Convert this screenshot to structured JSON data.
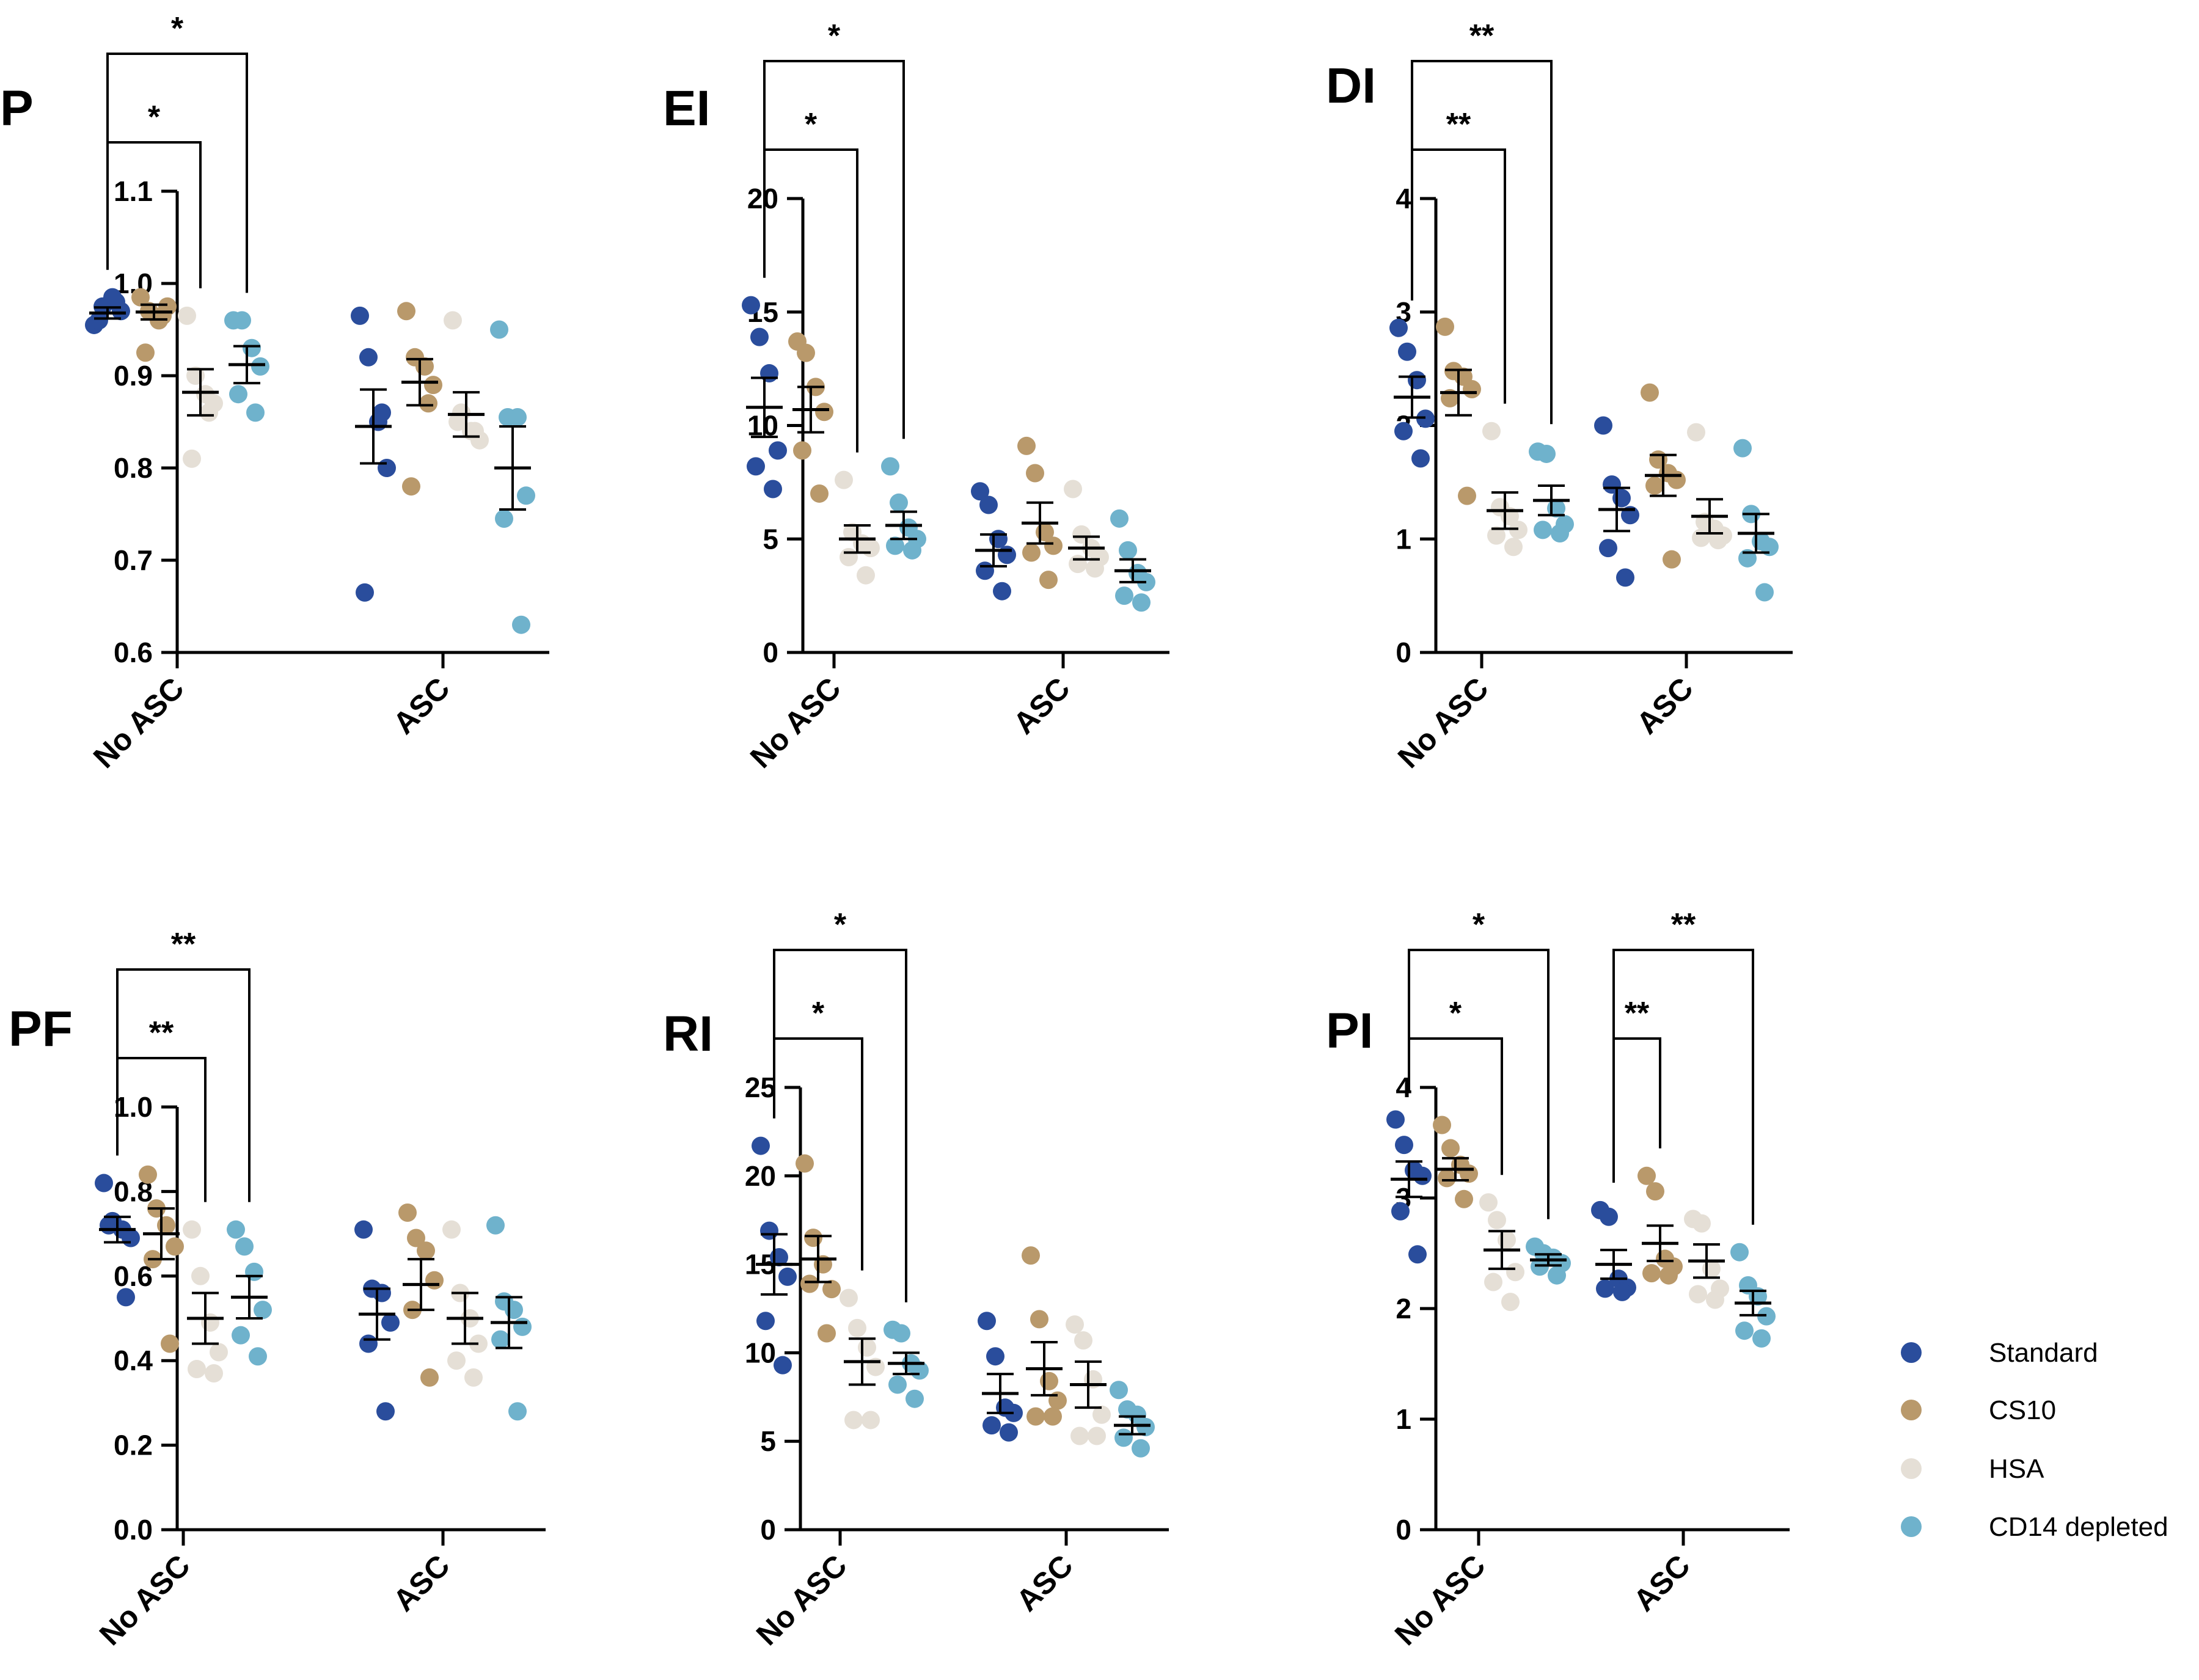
{
  "colors": {
    "Standard": "#2a4d9c",
    "CS10": "#b9996b",
    "HSA": "#e5dfd6",
    "CD14 depleted": "#6fb2cc"
  },
  "legend": {
    "items": [
      {
        "name": "Standard",
        "color": "#2a4d9c"
      },
      {
        "name": "CS10",
        "color": "#b9996b"
      },
      {
        "name": "HSA",
        "color": "#e5dfd6"
      },
      {
        "name": "CD14 depleted",
        "color": "#6fb2cc"
      }
    ]
  },
  "chart_data": [
    {
      "type": "scatter",
      "id": "P",
      "title": "P",
      "categories": [
        "No ASC",
        "ASC"
      ],
      "ylim": [
        0.6,
        1.1
      ],
      "yticks": [
        0.6,
        0.7,
        0.8,
        0.9,
        1.0,
        1.1
      ],
      "tick_labels": [
        "0.6",
        "0.7",
        "0.8",
        "0.9",
        "1.0",
        "1.1"
      ],
      "series": [
        {
          "name": "Standard",
          "values": [
            [
              0.955,
              0.975,
              0.985,
              0.97,
              0.96,
              0.98
            ],
            [
              0.965,
              0.92,
              0.85,
              0.8,
              0.665,
              0.86
            ]
          ],
          "mean": [
            0.968,
            0.845
          ],
          "sem": [
            0.006,
            0.04
          ]
        },
        {
          "name": "CS10",
          "values": [
            [
              0.985,
              0.97,
              0.96,
              0.975,
              0.925,
              0.965
            ],
            [
              0.97,
              0.92,
              0.91,
              0.89,
              0.78,
              0.87
            ]
          ],
          "mean": [
            0.969,
            0.893
          ],
          "sem": [
            0.008,
            0.025
          ]
        },
        {
          "name": "HSA",
          "values": [
            [
              0.965,
              0.9,
              0.88,
              0.87,
              0.81,
              0.86
            ],
            [
              0.96,
              0.86,
              0.84,
              0.83,
              0.85,
              0.84
            ]
          ],
          "mean": [
            0.882,
            0.858
          ],
          "sem": [
            0.025,
            0.024
          ]
        },
        {
          "name": "CD14 depleted",
          "values": [
            [
              0.96,
              0.96,
              0.93,
              0.91,
              0.88,
              0.86
            ],
            [
              0.95,
              0.855,
              0.855,
              0.77,
              0.745,
              0.63
            ]
          ],
          "mean": [
            0.912,
            0.8
          ],
          "sem": [
            0.02,
            0.045
          ]
        }
      ],
      "significance": [
        {
          "label": "*",
          "from": [
            0,
            0
          ],
          "to": [
            0,
            2
          ]
        },
        {
          "label": "*",
          "from": [
            0,
            0
          ],
          "to": [
            0,
            3
          ]
        }
      ]
    },
    {
      "type": "scatter",
      "id": "EI",
      "title": "EI",
      "categories": [
        "No ASC",
        "ASC"
      ],
      "ylim": [
        0,
        20
      ],
      "yticks": [
        0,
        5,
        10,
        15,
        20
      ],
      "tick_labels": [
        "0",
        "5",
        "10",
        "15",
        "20"
      ],
      "series": [
        {
          "name": "Standard",
          "values": [
            [
              15.3,
              13.9,
              12.3,
              8.9,
              8.2,
              7.2
            ],
            [
              7.1,
              6.5,
              5.0,
              4.3,
              3.6,
              2.7
            ]
          ],
          "mean": [
            10.8,
            4.5
          ],
          "sem": [
            1.3,
            0.7
          ]
        },
        {
          "name": "CS10",
          "values": [
            [
              13.7,
              13.2,
              11.7,
              10.6,
              8.9,
              7.0
            ],
            [
              9.1,
              7.9,
              5.3,
              4.7,
              4.4,
              3.2
            ]
          ],
          "mean": [
            10.7,
            5.7
          ],
          "sem": [
            1.0,
            0.9
          ]
        },
        {
          "name": "HSA",
          "values": [
            [
              7.6,
              5.3,
              4.8,
              4.6,
              4.2,
              3.4
            ],
            [
              7.2,
              5.2,
              4.6,
              4.2,
              3.9,
              3.7
            ]
          ],
          "mean": [
            5.0,
            4.6
          ],
          "sem": [
            0.6,
            0.5
          ]
        },
        {
          "name": "CD14 depleted",
          "values": [
            [
              8.2,
              6.6,
              5.5,
              5.0,
              4.7,
              4.5
            ],
            [
              5.9,
              4.5,
              3.5,
              3.1,
              2.5,
              2.2
            ]
          ],
          "mean": [
            5.6,
            3.6
          ],
          "sem": [
            0.6,
            0.5
          ]
        }
      ],
      "significance": [
        {
          "label": "*",
          "from": [
            0,
            0
          ],
          "to": [
            0,
            2
          ]
        },
        {
          "label": "*",
          "from": [
            0,
            0
          ],
          "to": [
            0,
            3
          ]
        }
      ]
    },
    {
      "type": "scatter",
      "id": "DI",
      "title": "DI",
      "categories": [
        "No ASC",
        "ASC"
      ],
      "ylim": [
        0,
        4
      ],
      "yticks": [
        0,
        1,
        2,
        3,
        4
      ],
      "tick_labels": [
        "0",
        "1",
        "2",
        "3",
        "4"
      ],
      "series": [
        {
          "name": "Standard",
          "values": [
            [
              2.86,
              2.65,
              2.4,
              2.06,
              1.95,
              1.71
            ],
            [
              2.0,
              1.48,
              1.36,
              1.21,
              0.92,
              0.66
            ]
          ],
          "mean": [
            2.25,
            1.26
          ],
          "sem": [
            0.18,
            0.19
          ]
        },
        {
          "name": "CS10",
          "values": [
            [
              2.87,
              2.48,
              2.43,
              2.32,
              2.24,
              1.38
            ],
            [
              2.29,
              1.7,
              1.58,
              1.52,
              1.47,
              0.82
            ]
          ],
          "mean": [
            2.29,
            1.56
          ],
          "sem": [
            0.2,
            0.18
          ]
        },
        {
          "name": "HSA",
          "values": [
            [
              1.95,
              1.28,
              1.2,
              1.08,
              1.03,
              0.93
            ],
            [
              1.94,
              1.15,
              1.09,
              1.03,
              1.01,
              0.99
            ]
          ],
          "mean": [
            1.25,
            1.2
          ],
          "sem": [
            0.16,
            0.15
          ]
        },
        {
          "name": "CD14 depleted",
          "values": [
            [
              1.77,
              1.75,
              1.27,
              1.13,
              1.08,
              1.05
            ],
            [
              1.8,
              1.22,
              0.98,
              0.93,
              0.83,
              0.53
            ]
          ],
          "mean": [
            1.34,
            1.05
          ],
          "sem": [
            0.13,
            0.17
          ]
        }
      ],
      "significance": [
        {
          "label": "**",
          "from": [
            0,
            0
          ],
          "to": [
            0,
            2
          ]
        },
        {
          "label": "**",
          "from": [
            0,
            0
          ],
          "to": [
            0,
            3
          ]
        }
      ]
    },
    {
      "type": "scatter",
      "id": "PF",
      "title": "PF",
      "categories": [
        "No ASC",
        "ASC"
      ],
      "ylim": [
        0.0,
        1.0
      ],
      "yticks": [
        0.0,
        0.2,
        0.4,
        0.6,
        0.8,
        1.0
      ],
      "tick_labels": [
        "0.0",
        "0.2",
        "0.4",
        "0.6",
        "0.8",
        "1.0"
      ],
      "series": [
        {
          "name": "Standard",
          "values": [
            [
              0.82,
              0.73,
              0.71,
              0.69,
              0.72,
              0.55
            ],
            [
              0.71,
              0.57,
              0.56,
              0.49,
              0.44,
              0.28
            ]
          ],
          "mean": [
            0.71,
            0.51
          ],
          "sem": [
            0.03,
            0.06
          ]
        },
        {
          "name": "CS10",
          "values": [
            [
              0.84,
              0.76,
              0.72,
              0.67,
              0.64,
              0.44
            ],
            [
              0.75,
              0.69,
              0.66,
              0.59,
              0.52,
              0.36
            ]
          ],
          "mean": [
            0.7,
            0.58
          ],
          "sem": [
            0.06,
            0.06
          ]
        },
        {
          "name": "HSA",
          "values": [
            [
              0.71,
              0.6,
              0.49,
              0.42,
              0.38,
              0.37
            ],
            [
              0.71,
              0.56,
              0.5,
              0.44,
              0.4,
              0.36
            ]
          ],
          "mean": [
            0.5,
            0.5
          ],
          "sem": [
            0.06,
            0.06
          ]
        },
        {
          "name": "CD14 depleted",
          "values": [
            [
              0.71,
              0.67,
              0.61,
              0.52,
              0.46,
              0.41
            ],
            [
              0.72,
              0.54,
              0.52,
              0.48,
              0.45,
              0.28
            ]
          ],
          "mean": [
            0.55,
            0.49
          ],
          "sem": [
            0.05,
            0.06
          ]
        }
      ],
      "significance": [
        {
          "label": "**",
          "from": [
            0,
            0
          ],
          "to": [
            0,
            2
          ]
        },
        {
          "label": "**",
          "from": [
            0,
            0
          ],
          "to": [
            0,
            3
          ]
        }
      ]
    },
    {
      "type": "scatter",
      "id": "RI",
      "title": "RI",
      "categories": [
        "No ASC",
        "ASC"
      ],
      "ylim": [
        0,
        25
      ],
      "yticks": [
        0,
        5,
        10,
        15,
        20,
        25
      ],
      "tick_labels": [
        "0",
        "5",
        "10",
        "15",
        "20",
        "25"
      ],
      "series": [
        {
          "name": "Standard",
          "values": [
            [
              21.7,
              16.9,
              15.4,
              14.3,
              11.8,
              9.3
            ],
            [
              11.8,
              9.8,
              6.9,
              6.6,
              5.9,
              5.5
            ]
          ],
          "mean": [
            15.0,
            7.7
          ],
          "sem": [
            1.7,
            1.1
          ]
        },
        {
          "name": "CS10",
          "values": [
            [
              20.7,
              16.5,
              15.0,
              13.6,
              13.9,
              11.1
            ],
            [
              15.5,
              11.9,
              8.4,
              7.3,
              6.4,
              6.4
            ]
          ],
          "mean": [
            15.3,
            9.1
          ],
          "sem": [
            1.3,
            1.5
          ]
        },
        {
          "name": "HSA",
          "values": [
            [
              13.1,
              11.4,
              10.3,
              9.2,
              6.2,
              6.2
            ],
            [
              11.6,
              10.7,
              8.5,
              6.5,
              5.3,
              5.3
            ]
          ],
          "mean": [
            9.5,
            8.2
          ],
          "sem": [
            1.3,
            1.3
          ]
        },
        {
          "name": "CD14 depleted",
          "values": [
            [
              11.3,
              11.1,
              9.4,
              9.0,
              8.2,
              7.4
            ],
            [
              7.9,
              6.8,
              6.5,
              5.8,
              5.2,
              4.6
            ]
          ],
          "mean": [
            9.4,
            5.9
          ],
          "sem": [
            0.6,
            0.5
          ]
        }
      ],
      "significance": [
        {
          "label": "*",
          "from": [
            0,
            0
          ],
          "to": [
            0,
            2
          ]
        },
        {
          "label": "*",
          "from": [
            0,
            0
          ],
          "to": [
            0,
            3
          ]
        }
      ]
    },
    {
      "type": "scatter",
      "id": "PI",
      "title": "PI",
      "categories": [
        "No ASC",
        "ASC"
      ],
      "ylim": [
        0,
        4
      ],
      "yticks": [
        0,
        1,
        2,
        3,
        4
      ],
      "tick_labels": [
        "0",
        "1",
        "2",
        "3",
        "4"
      ],
      "series": [
        {
          "name": "Standard",
          "values": [
            [
              3.71,
              3.48,
              3.25,
              3.2,
              2.88,
              2.49
            ],
            [
              2.89,
              2.83,
              2.27,
              2.19,
              2.18,
              2.15
            ]
          ],
          "mean": [
            3.17,
            2.4
          ],
          "sem": [
            0.16,
            0.13
          ]
        },
        {
          "name": "CS10",
          "values": [
            [
              3.66,
              3.45,
              3.3,
              3.22,
              3.18,
              2.99
            ],
            [
              3.2,
              3.06,
              2.45,
              2.38,
              2.32,
              2.3
            ]
          ],
          "mean": [
            3.26,
            2.59
          ],
          "sem": [
            0.1,
            0.16
          ]
        },
        {
          "name": "HSA",
          "values": [
            [
              2.96,
              2.8,
              2.62,
              2.33,
              2.24,
              2.06
            ],
            [
              2.81,
              2.77,
              2.36,
              2.18,
              2.13,
              2.08
            ]
          ],
          "mean": [
            2.53,
            2.43
          ],
          "sem": [
            0.17,
            0.15
          ]
        },
        {
          "name": "CD14 depleted",
          "values": [
            [
              2.56,
              2.5,
              2.46,
              2.41,
              2.38,
              2.3
            ],
            [
              2.51,
              2.21,
              2.11,
              1.93,
              1.8,
              1.73
            ]
          ],
          "mean": [
            2.44,
            2.05
          ],
          "sem": [
            0.05,
            0.11
          ]
        }
      ],
      "significance": [
        {
          "label": "*",
          "from": [
            0,
            0
          ],
          "to": [
            0,
            2
          ]
        },
        {
          "label": "*",
          "from": [
            0,
            0
          ],
          "to": [
            0,
            3
          ]
        },
        {
          "label": "**",
          "from": [
            1,
            0
          ],
          "to": [
            1,
            1
          ]
        },
        {
          "label": "**",
          "from": [
            1,
            0
          ],
          "to": [
            1,
            3
          ]
        }
      ]
    }
  ]
}
